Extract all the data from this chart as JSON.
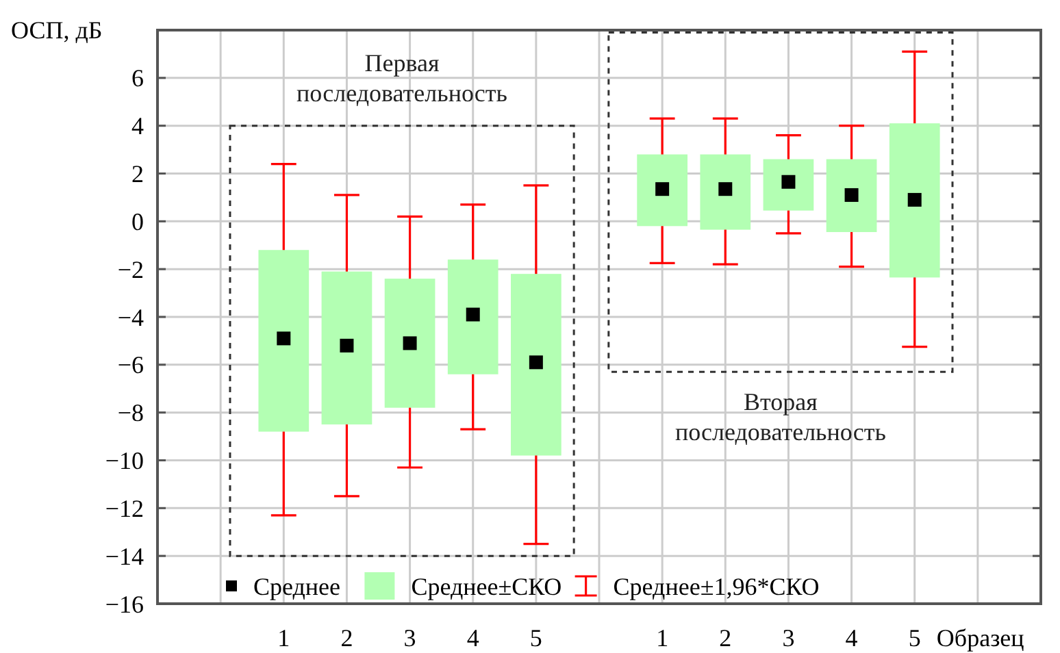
{
  "chart_data": {
    "type": "bar",
    "ylabel": "ОСП, дБ",
    "xlabel": "Образец",
    "categories": [
      null,
      "1",
      "2",
      "3",
      "4",
      "5",
      null,
      "1",
      "2",
      "3",
      "4",
      "5",
      null
    ],
    "ylim": [
      -16,
      8
    ],
    "yticks": [
      -16,
      -14,
      -12,
      -10,
      -8,
      -6,
      -4,
      -2,
      0,
      2,
      4,
      6
    ],
    "grid": true,
    "legend": "bottom",
    "annotations": [
      "Первая последовательность",
      "Вторая последовательность",
      "Среднее±1,96*СКО"
    ],
    "series": [
      {
        "name": "Среднее±СКО",
        "color": "#b3ffb3",
        "base": [
          null,
          -8.8,
          -8.5,
          -7.8,
          -6.4,
          -9.8,
          null,
          -0.2,
          -0.35,
          0.45,
          -0.45,
          -2.35,
          null
        ],
        "values": [
          null,
          7.6,
          6.4,
          5.4,
          4.8,
          7.6,
          null,
          3.0,
          3.15,
          2.15,
          3.05,
          6.45,
          null
        ]
      },
      {
        "name": "Среднее",
        "type": "scatter",
        "marker": "square",
        "color": "#000000",
        "values": [
          null,
          -4.9,
          -5.2,
          -5.1,
          -3.9,
          -5.9,
          null,
          1.35,
          1.35,
          1.65,
          1.1,
          0.9,
          null
        ],
        "errors": [
          null,
          [
            -12.3,
            2.4
          ],
          [
            -11.5,
            1.1
          ],
          [
            -10.3,
            0.2
          ],
          [
            -8.7,
            0.7
          ],
          [
            -13.5,
            1.5
          ],
          null,
          [
            -1.75,
            4.3
          ],
          [
            -1.8,
            4.3
          ],
          [
            -0.5,
            3.6
          ],
          [
            -1.9,
            4.0
          ],
          [
            -5.25,
            7.1
          ],
          null
        ]
      }
    ]
  }
}
